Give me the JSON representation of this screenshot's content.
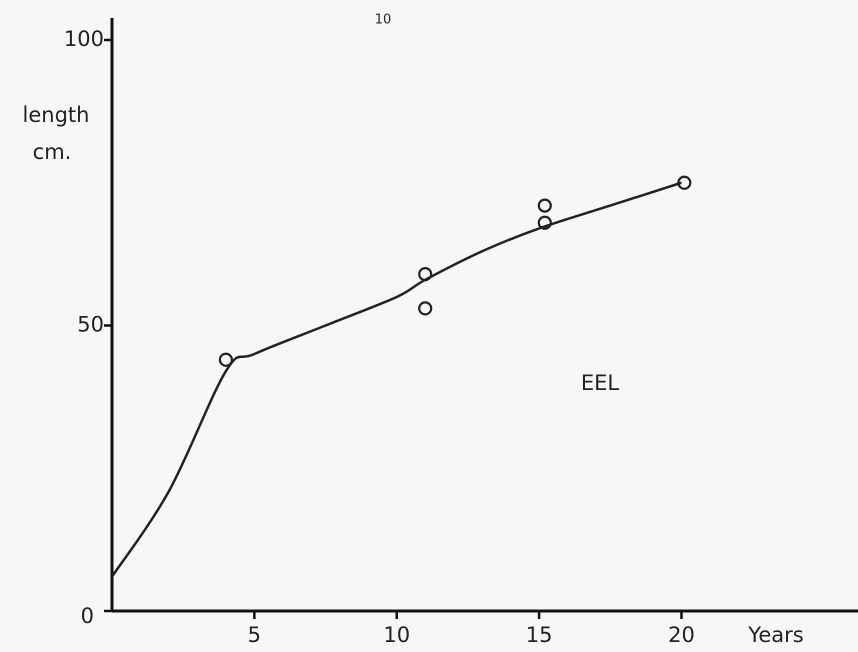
{
  "chart_data": {
    "type": "scatter",
    "page_number": "10",
    "ylabel_lines": [
      "length",
      "cm."
    ],
    "xlabel": "Years",
    "annotation": "EEL",
    "x": [
      4,
      11,
      11,
      15.2,
      15.2,
      20.1
    ],
    "values": [
      44,
      59,
      53,
      71,
      68,
      75
    ],
    "curve": {
      "x": [
        0,
        2,
        4,
        5,
        7.5,
        10,
        11,
        13,
        15,
        17.5,
        20
      ],
      "values": [
        6,
        21,
        42,
        45,
        50,
        55,
        58,
        63,
        67,
        71,
        75
      ]
    },
    "xlim": [
      0,
      26.2
    ],
    "ylim": [
      0,
      100
    ],
    "xticks": [
      5,
      10,
      15,
      20
    ],
    "yticks": [
      0,
      50,
      100
    ],
    "color": "#222222"
  }
}
